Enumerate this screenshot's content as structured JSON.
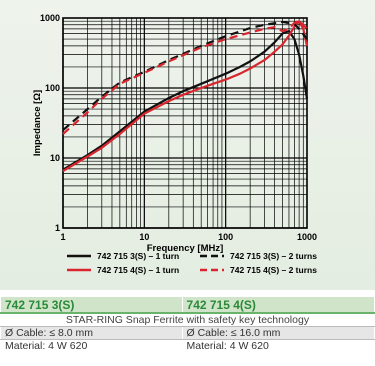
{
  "chart_data": {
    "type": "line",
    "xlabel": "Frequency [MHz]",
    "ylabel": "Impedance [Ω]",
    "x_scale": "log",
    "y_scale": "log",
    "xlim": [
      1,
      1000
    ],
    "ylim": [
      1,
      1000
    ],
    "x_ticks": [
      "1",
      "10",
      "100",
      "1000"
    ],
    "y_ticks": [
      "1",
      "10",
      "100",
      "1000"
    ],
    "grid": true,
    "legend_position": "bottom",
    "series": [
      {
        "name": "742 715 3(S) – 1 turn",
        "color": "#111111",
        "dash": "solid",
        "points": [
          [
            1,
            6.8
          ],
          [
            2,
            11
          ],
          [
            3,
            15
          ],
          [
            5,
            24
          ],
          [
            10,
            46
          ],
          [
            20,
            72
          ],
          [
            30,
            90
          ],
          [
            50,
            115
          ],
          [
            70,
            135
          ],
          [
            100,
            160
          ],
          [
            150,
            200
          ],
          [
            200,
            240
          ],
          [
            300,
            330
          ],
          [
            400,
            450
          ],
          [
            500,
            600
          ],
          [
            600,
            650
          ],
          [
            700,
            500
          ],
          [
            800,
            300
          ],
          [
            900,
            150
          ],
          [
            1000,
            70
          ]
        ]
      },
      {
        "name": "742 715 4(S) – 1 turn",
        "color": "#d9262e",
        "dash": "solid",
        "points": [
          [
            1,
            6.5
          ],
          [
            2,
            10.5
          ],
          [
            3,
            14
          ],
          [
            5,
            22
          ],
          [
            10,
            43
          ],
          [
            20,
            65
          ],
          [
            30,
            80
          ],
          [
            50,
            100
          ],
          [
            70,
            115
          ],
          [
            100,
            132
          ],
          [
            150,
            160
          ],
          [
            200,
            190
          ],
          [
            300,
            250
          ],
          [
            400,
            330
          ],
          [
            500,
            420
          ],
          [
            600,
            560
          ],
          [
            700,
            750
          ],
          [
            800,
            900
          ],
          [
            900,
            700
          ],
          [
            1000,
            400
          ]
        ]
      },
      {
        "name": "742 715 3(S) – 2 turns",
        "color": "#111111",
        "dash": "dashed",
        "points": [
          [
            1,
            25
          ],
          [
            2,
            50
          ],
          [
            3,
            75
          ],
          [
            5,
            120
          ],
          [
            10,
            170
          ],
          [
            20,
            250
          ],
          [
            50,
            400
          ],
          [
            100,
            550
          ],
          [
            200,
            720
          ],
          [
            300,
            800
          ],
          [
            500,
            880
          ],
          [
            700,
            820
          ],
          [
            800,
            700
          ],
          [
            1000,
            500
          ]
        ]
      },
      {
        "name": "742 715 4(S) – 2 turns",
        "color": "#d9262e",
        "dash": "dashed",
        "points": [
          [
            1,
            22
          ],
          [
            2,
            45
          ],
          [
            3,
            70
          ],
          [
            5,
            115
          ],
          [
            10,
            165
          ],
          [
            20,
            240
          ],
          [
            50,
            380
          ],
          [
            100,
            500
          ],
          [
            200,
            620
          ],
          [
            300,
            700
          ],
          [
            400,
            740
          ],
          [
            500,
            650
          ],
          [
            600,
            700
          ],
          [
            700,
            850
          ],
          [
            800,
            920
          ],
          [
            1000,
            700
          ]
        ]
      }
    ]
  },
  "table": {
    "headers": [
      "742 715 3(S)",
      "742 715 4(S)"
    ],
    "description": "STAR-RING Snap Ferrite with safety key technology",
    "rows": [
      [
        "Ø Cable: ≤ 8.0 mm",
        "Ø Cable: ≤ 16.0 mm"
      ],
      [
        "Material: 4 W 620",
        "Material: 4 W 620"
      ]
    ]
  }
}
